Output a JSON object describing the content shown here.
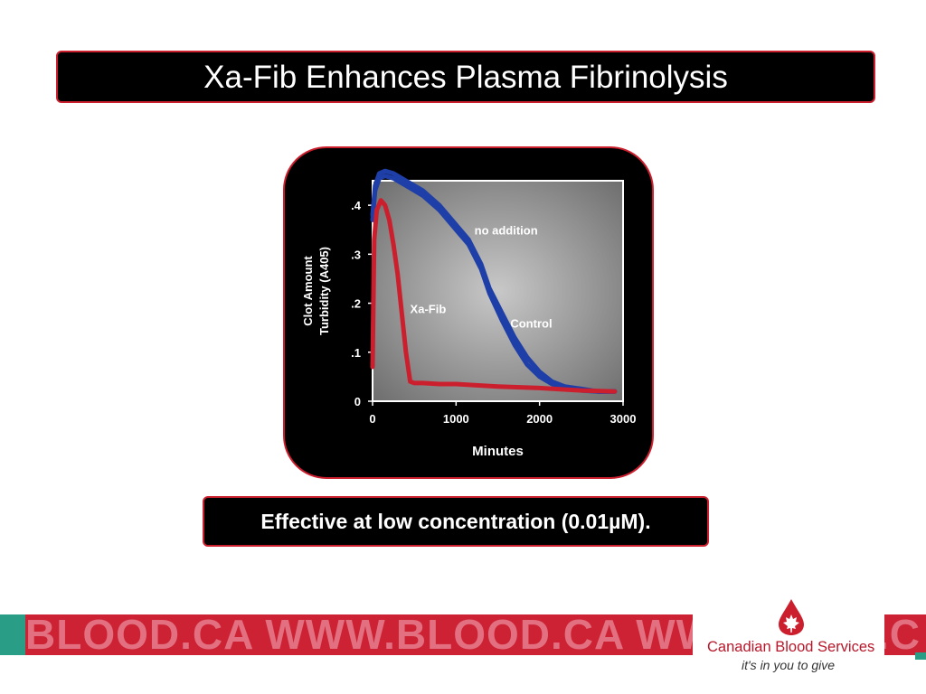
{
  "slide": {
    "title": "Xa-Fib Enhances Plasma Fibrinolysis",
    "caption": "Effective at low concentration (0.01µM)."
  },
  "footer": {
    "strip_text": "BLOOD.CA WWW.BLOOD.CA WWW",
    "strip_text_right": ".C",
    "logo_name": "Canadian Blood Services",
    "logo_tagline": "it's in you to give",
    "colors": {
      "teal": "#2a9d87",
      "red": "#cc2233",
      "logo_red": "#b8172a"
    }
  },
  "chart_data": {
    "type": "line",
    "xlabel": "Minutes",
    "ylabel_line1": "Clot Amount",
    "ylabel_line2": "Turbidity (A405)",
    "xlim": [
      0,
      3000
    ],
    "ylim": [
      0,
      0.45
    ],
    "xticks": [
      0,
      1000,
      2000,
      3000
    ],
    "xtick_labels": [
      "0",
      "1000",
      "2000",
      "3000"
    ],
    "yticks": [
      0,
      0.1,
      0.2,
      0.3,
      0.4
    ],
    "ytick_labels": [
      "0",
      ".1",
      ".2",
      ".3",
      ".4"
    ],
    "grid": false,
    "series": [
      {
        "name": "no addition",
        "color": "#1f3fa8",
        "x": [
          0,
          30,
          80,
          150,
          250,
          400,
          600,
          800,
          1000,
          1150,
          1300,
          1400,
          1550,
          1700,
          1850,
          2000,
          2150,
          2300,
          2500,
          2700,
          2900
        ],
        "y": [
          0.38,
          0.44,
          0.465,
          0.47,
          0.465,
          0.45,
          0.43,
          0.4,
          0.36,
          0.33,
          0.28,
          0.23,
          0.18,
          0.13,
          0.09,
          0.06,
          0.04,
          0.03,
          0.025,
          0.02,
          0.02
        ]
      },
      {
        "name": "Control",
        "color": "#1f3fa8",
        "x": [
          0,
          30,
          80,
          150,
          250,
          400,
          600,
          800,
          1000,
          1150,
          1300,
          1400,
          1550,
          1700,
          1850,
          2000,
          2150,
          2300,
          2500,
          2700,
          2900
        ],
        "y": [
          0.37,
          0.43,
          0.455,
          0.46,
          0.455,
          0.44,
          0.42,
          0.39,
          0.35,
          0.32,
          0.27,
          0.22,
          0.165,
          0.115,
          0.075,
          0.05,
          0.035,
          0.028,
          0.022,
          0.02,
          0.02
        ]
      },
      {
        "name": "Xa-Fib",
        "color": "#cc1f2e",
        "x": [
          0,
          20,
          50,
          100,
          150,
          200,
          250,
          300,
          350,
          400,
          450,
          500,
          600,
          800,
          1000,
          1500,
          2000,
          2500,
          2900
        ],
        "y": [
          0.07,
          0.33,
          0.39,
          0.41,
          0.4,
          0.37,
          0.32,
          0.26,
          0.18,
          0.1,
          0.04,
          0.037,
          0.037,
          0.035,
          0.035,
          0.03,
          0.027,
          0.022,
          0.02
        ]
      }
    ],
    "annotations": [
      {
        "text": "no addition",
        "x": 1220,
        "y": 0.34
      },
      {
        "text": "Xa-Fib",
        "x": 450,
        "y": 0.18
      },
      {
        "text": "Control",
        "x": 1650,
        "y": 0.15
      }
    ],
    "colors": {
      "panel_bg": "#000000",
      "plot_center": "#c8c8c8",
      "plot_edge": "#6e6e6e",
      "axis": "#ffffff"
    }
  }
}
